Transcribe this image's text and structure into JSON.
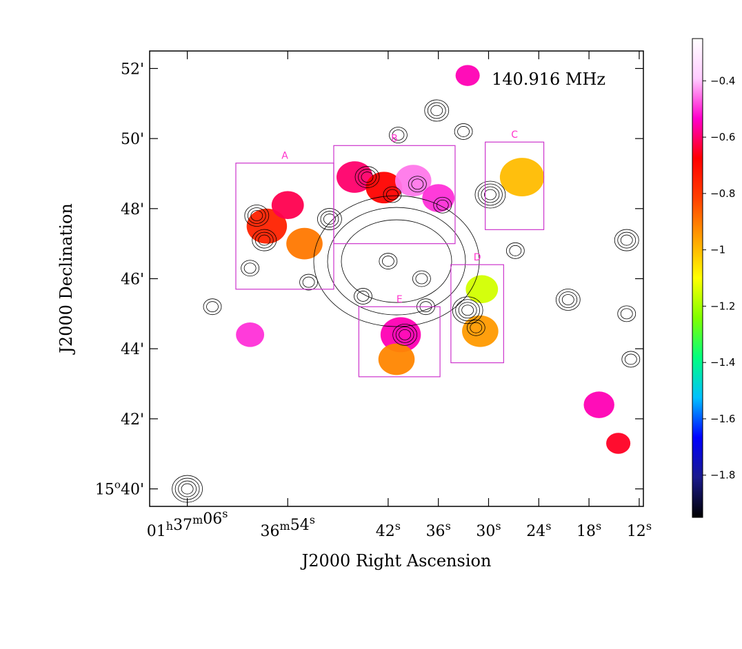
{
  "chart_data": {
    "type": "heatmap",
    "description_text": "",
    "frequency_label": "140.916 MHz",
    "xlabel": "J2000 Right Ascension",
    "ylabel": "J2000 Declination",
    "x_ticks": [
      {
        "h": "01",
        "m": "37",
        "s": "06",
        "label": "01h37m06s"
      },
      {
        "m": "36",
        "s": "54",
        "label": "36m54s"
      },
      {
        "s": "42",
        "label": "42s"
      },
      {
        "s": "36",
        "label": "36s"
      },
      {
        "s": "30",
        "label": "30s"
      },
      {
        "s": "24",
        "label": "24s"
      },
      {
        "s": "18",
        "label": "18s"
      },
      {
        "s": "12",
        "label": "12s"
      }
    ],
    "x_ticks_seconds": [
      66,
      54,
      42,
      36,
      30,
      24,
      18,
      12
    ],
    "y_ticks": [
      {
        "value": 52,
        "label": "52'"
      },
      {
        "value": 50,
        "label": "50'"
      },
      {
        "value": 48,
        "label": "48'"
      },
      {
        "value": 46,
        "label": "46'"
      },
      {
        "value": 44,
        "label": "44'"
      },
      {
        "value": 42,
        "label": "42'"
      },
      {
        "value": 40,
        "label": "15°40'",
        "deg": "15",
        "min": "40'"
      }
    ],
    "xlim_seconds": [
      70.5,
      11.5
    ],
    "ylim_arcmin": [
      39.5,
      52.5
    ],
    "colorbar": {
      "ticks": [
        -0.4,
        -0.6,
        -0.8,
        -1,
        -1.2,
        -1.4,
        -1.6,
        -1.8
      ],
      "tick_labels": [
        "−0.4",
        "−0.6",
        "−0.8",
        "−1",
        "−1.2",
        "−1.4",
        "−1.6",
        "−1.8"
      ],
      "range": [
        -1.95,
        -0.25
      ],
      "colors": [
        "#000000",
        "#1a1a8c",
        "#0000ff",
        "#00c0ff",
        "#00ff80",
        "#80ff00",
        "#ffff00",
        "#ffa000",
        "#ff4000",
        "#ff0000",
        "#ff00cc",
        "#ffccff",
        "#ffffff"
      ]
    },
    "regions": [
      {
        "label": "A",
        "ra_s": [
          60.2,
          48.5
        ],
        "dec": [
          45.7,
          49.3
        ]
      },
      {
        "label": "B",
        "ra_s": [
          48.5,
          34.0
        ],
        "dec": [
          47.0,
          49.8
        ]
      },
      {
        "label": "C",
        "ra_s": [
          30.4,
          23.4
        ],
        "dec": [
          47.4,
          49.9
        ]
      },
      {
        "label": "D",
        "ra_s": [
          34.5,
          28.2
        ],
        "dec": [
          43.6,
          46.4
        ]
      },
      {
        "label": "E",
        "ra_s": [
          45.5,
          35.8
        ],
        "dec": [
          43.2,
          45.2
        ]
      }
    ],
    "colored_patches": [
      {
        "ra_s": 32.5,
        "dec": 51.8,
        "value": -0.55,
        "r": 0.3
      },
      {
        "ra_s": 56.5,
        "dec": 47.5,
        "value": -0.75,
        "r": 0.5
      },
      {
        "ra_s": 54.0,
        "dec": 48.1,
        "value": -0.62,
        "r": 0.4
      },
      {
        "ra_s": 52.0,
        "dec": 47.0,
        "value": -0.9,
        "r": 0.45
      },
      {
        "ra_s": 46.0,
        "dec": 48.9,
        "value": -0.6,
        "r": 0.45
      },
      {
        "ra_s": 42.5,
        "dec": 48.6,
        "value": -0.68,
        "r": 0.45
      },
      {
        "ra_s": 39.0,
        "dec": 48.8,
        "value": -0.45,
        "r": 0.45
      },
      {
        "ra_s": 36.0,
        "dec": 48.3,
        "value": -0.5,
        "r": 0.4
      },
      {
        "ra_s": 26.0,
        "dec": 48.9,
        "value": -1.0,
        "r": 0.55
      },
      {
        "ra_s": 30.8,
        "dec": 45.7,
        "value": -1.15,
        "r": 0.4
      },
      {
        "ra_s": 31.0,
        "dec": 44.5,
        "value": -0.95,
        "r": 0.45
      },
      {
        "ra_s": 40.5,
        "dec": 44.4,
        "value": -0.55,
        "r": 0.5
      },
      {
        "ra_s": 41.0,
        "dec": 43.7,
        "value": -0.92,
        "r": 0.45
      },
      {
        "ra_s": 58.5,
        "dec": 44.4,
        "value": -0.5,
        "r": 0.35
      },
      {
        "ra_s": 16.8,
        "dec": 42.4,
        "value": -0.55,
        "r": 0.38
      },
      {
        "ra_s": 14.5,
        "dec": 41.3,
        "value": -0.65,
        "r": 0.3
      }
    ],
    "grid": false,
    "legend": "colorbar-right"
  }
}
